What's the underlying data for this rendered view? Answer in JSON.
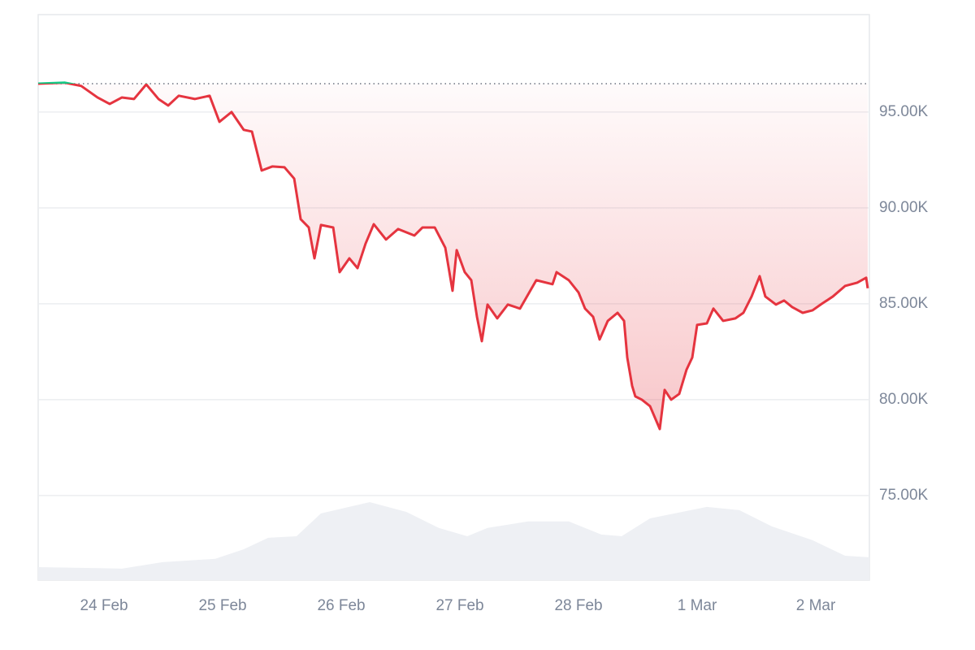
{
  "chart_data": {
    "type": "line",
    "x": [
      23.445,
      23.671,
      23.808,
      23.945,
      24.048,
      24.151,
      24.253,
      24.356,
      24.459,
      24.541,
      24.63,
      24.767,
      24.89,
      24.973,
      25.075,
      25.178,
      25.247,
      25.329,
      25.418,
      25.521,
      25.603,
      25.658,
      25.726,
      25.774,
      25.829,
      25.932,
      25.986,
      26.068,
      26.137,
      26.205,
      26.274,
      26.377,
      26.479,
      26.616,
      26.685,
      26.788,
      26.877,
      26.938,
      26.973,
      27.041,
      27.096,
      27.144,
      27.185,
      27.233,
      27.315,
      27.404,
      27.507,
      27.644,
      27.781,
      27.815,
      27.918,
      28.0,
      28.055,
      28.123,
      28.178,
      28.247,
      28.329,
      28.384,
      28.411,
      28.452,
      28.479,
      28.534,
      28.603,
      28.685,
      28.726,
      28.781,
      28.849,
      28.911,
      28.959,
      29.0,
      29.082,
      29.137,
      29.219,
      29.322,
      29.39,
      29.459,
      29.527,
      29.575,
      29.664,
      29.733,
      29.801,
      29.89,
      29.973,
      30.041,
      30.144,
      30.247,
      30.349,
      30.425,
      30.438
    ],
    "values": [
      96480,
      96530,
      96360,
      95760,
      95420,
      95760,
      95680,
      96440,
      95680,
      95340,
      95850,
      95680,
      95850,
      94490,
      95000,
      94070,
      93980,
      91950,
      92160,
      92120,
      91530,
      89410,
      88980,
      87370,
      89110,
      88980,
      86650,
      87370,
      86860,
      88140,
      89150,
      88350,
      88900,
      88560,
      88980,
      88980,
      87920,
      85680,
      87800,
      86650,
      86230,
      84320,
      83050,
      84960,
      84240,
      84960,
      84750,
      86230,
      86020,
      86650,
      86230,
      85590,
      84750,
      84320,
      83140,
      84110,
      84530,
      84110,
      82200,
      80720,
      80170,
      80000,
      79660,
      78470,
      80510,
      80000,
      80300,
      81570,
      82200,
      83900,
      83980,
      84750,
      84110,
      84240,
      84530,
      85380,
      86440,
      85380,
      84960,
      85170,
      84830,
      84530,
      84660,
      84960,
      85380,
      85930,
      86100,
      86360,
      85810
    ],
    "color": "#e5343f",
    "up_color": "#16c784",
    "volume": {
      "x": [
        23.445,
        24.151,
        24.493,
        24.938,
        25.178,
        25.384,
        25.623,
        25.829,
        26.24,
        26.548,
        26.822,
        27.062,
        27.233,
        27.575,
        27.918,
        28.192,
        28.363,
        28.603,
        29.082,
        29.356,
        29.63,
        29.973,
        30.247,
        30.452
      ],
      "values": [
        71270,
        71190,
        71530,
        71700,
        72200,
        72800,
        72880,
        74070,
        74660,
        74150,
        73310,
        72880,
        73310,
        73650,
        73650,
        72970,
        72880,
        73810,
        74410,
        74240,
        73390,
        72670,
        71860,
        71780
      ],
      "color": "#eef0f4"
    },
    "xlim": [
      23.445,
      30.452
    ],
    "ylim": [
      70590,
      100080
    ],
    "xticks": [
      {
        "value": 24,
        "label": "24 Feb"
      },
      {
        "value": 25,
        "label": "25 Feb"
      },
      {
        "value": 26,
        "label": "26 Feb"
      },
      {
        "value": 27,
        "label": "27 Feb"
      },
      {
        "value": 28,
        "label": "28 Feb"
      },
      {
        "value": 29,
        "label": "1 Mar"
      },
      {
        "value": 30,
        "label": "2 Mar"
      }
    ],
    "yticks": [
      {
        "value": 75000,
        "label": "75.00K"
      },
      {
        "value": 80000,
        "label": "80.00K"
      },
      {
        "value": 85000,
        "label": "85.00K"
      },
      {
        "value": 90000,
        "label": "90.00K"
      },
      {
        "value": 95000,
        "label": "95.00K"
      }
    ],
    "grid": true
  }
}
